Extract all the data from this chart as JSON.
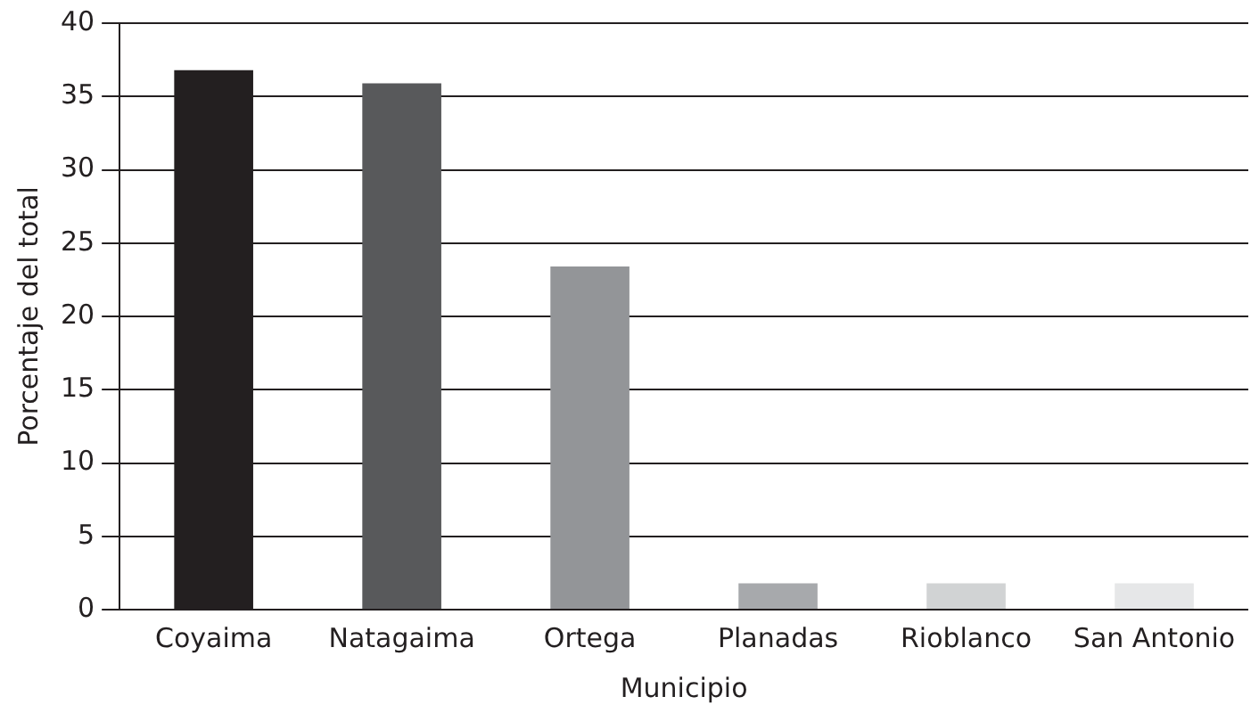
{
  "chart_data": {
    "type": "bar",
    "xlabel": "Municipio",
    "ylabel": "Porcentaje del total",
    "categories": [
      "Coyaima",
      "Natagaima",
      "Ortega",
      "Planadas",
      "Rioblanco",
      "San Antonio"
    ],
    "values": [
      36.8,
      35.9,
      23.4,
      1.8,
      1.8,
      1.8
    ],
    "colors": [
      "#231f20",
      "#58595b",
      "#939598",
      "#a7a9ac",
      "#d1d3d4",
      "#e6e7e8"
    ],
    "ylim": [
      0,
      40
    ],
    "yticks": [
      0,
      5,
      10,
      15,
      20,
      25,
      30,
      35,
      40
    ],
    "grid": "y",
    "legend": false
  }
}
